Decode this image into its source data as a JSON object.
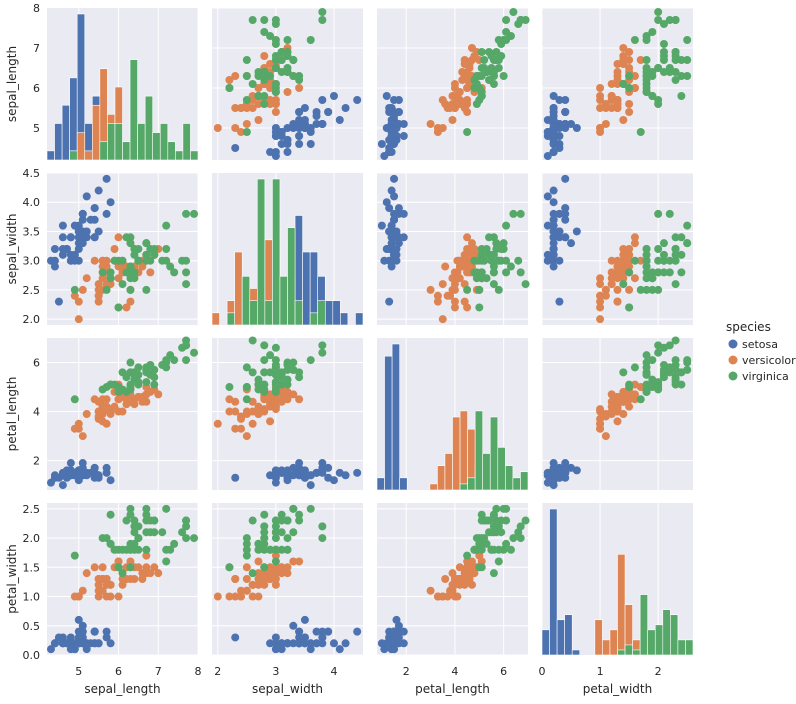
{
  "chart_data": {
    "type": "scatter",
    "title": "",
    "variables": [
      "sepal_length",
      "sepal_width",
      "petal_length",
      "petal_width"
    ],
    "diagonal_type": "bar",
    "legend": {
      "title": "species",
      "placement": "right",
      "entries": [
        {
          "name": "setosa",
          "color": "#4c72b0"
        },
        {
          "name": "versicolor",
          "color": "#dd8452"
        },
        {
          "name": "virginica",
          "color": "#55a868"
        }
      ]
    },
    "axes": {
      "sepal_length": {
        "label": "sepal_length",
        "range": [
          4.2,
          8.0
        ],
        "ticks": [
          5,
          6,
          7,
          8
        ]
      },
      "sepal_width": {
        "label": "sepal_width",
        "range": [
          1.9,
          4.5
        ],
        "ticks": [
          2.0,
          2.5,
          3.0,
          3.5,
          4.0,
          4.5
        ]
      },
      "petal_length": {
        "label": "petal_length",
        "range": [
          0.8,
          7.0
        ],
        "ticks": [
          2,
          4,
          6
        ]
      },
      "petal_width": {
        "label": "petal_width",
        "range": [
          0.0,
          2.6
        ],
        "ticks": [
          0.0,
          0.5,
          1.0,
          1.5,
          2.0,
          2.5
        ]
      }
    },
    "x_tick_labels": {
      "sepal_length": [
        "5",
        "6",
        "7",
        "8"
      ],
      "sepal_width": [
        "2",
        "3",
        "4"
      ],
      "petal_length": [
        "2",
        "4",
        "6"
      ],
      "petal_width": [
        "0",
        "1",
        "2"
      ]
    },
    "x_ticks": {
      "sepal_length": [
        5,
        6,
        7,
        8
      ],
      "sepal_width": [
        2,
        3,
        4
      ],
      "petal_length": [
        2,
        4,
        6
      ],
      "petal_width": [
        0,
        1,
        2
      ]
    },
    "y_tick_labels": {
      "sepal_length": [
        "5",
        "6",
        "7",
        "8"
      ],
      "sepal_width": [
        "2.0",
        "2.5",
        "3.0",
        "3.5",
        "4.0",
        "4.5"
      ],
      "petal_length": [
        "2",
        "4",
        "6"
      ],
      "petal_width": [
        "0.0",
        "0.5",
        "1.0",
        "1.5",
        "2.0",
        "2.5"
      ]
    },
    "series": [
      {
        "name": "setosa",
        "color": "#4c72b0",
        "points": [
          [
            5.1,
            3.5,
            1.4,
            0.2
          ],
          [
            4.9,
            3.0,
            1.4,
            0.2
          ],
          [
            4.7,
            3.2,
            1.3,
            0.2
          ],
          [
            4.6,
            3.1,
            1.5,
            0.2
          ],
          [
            5.0,
            3.6,
            1.4,
            0.2
          ],
          [
            5.4,
            3.9,
            1.7,
            0.4
          ],
          [
            4.6,
            3.4,
            1.4,
            0.3
          ],
          [
            5.0,
            3.4,
            1.5,
            0.2
          ],
          [
            4.4,
            2.9,
            1.4,
            0.2
          ],
          [
            4.9,
            3.1,
            1.5,
            0.1
          ],
          [
            5.4,
            3.7,
            1.5,
            0.2
          ],
          [
            4.8,
            3.4,
            1.6,
            0.2
          ],
          [
            4.8,
            3.0,
            1.4,
            0.1
          ],
          [
            4.3,
            3.0,
            1.1,
            0.1
          ],
          [
            5.8,
            4.0,
            1.2,
            0.2
          ],
          [
            5.7,
            4.4,
            1.5,
            0.4
          ],
          [
            5.4,
            3.9,
            1.3,
            0.4
          ],
          [
            5.1,
            3.5,
            1.4,
            0.3
          ],
          [
            5.7,
            3.8,
            1.7,
            0.3
          ],
          [
            5.1,
            3.8,
            1.5,
            0.3
          ],
          [
            5.4,
            3.4,
            1.7,
            0.2
          ],
          [
            5.1,
            3.7,
            1.5,
            0.4
          ],
          [
            4.6,
            3.6,
            1.0,
            0.2
          ],
          [
            5.1,
            3.3,
            1.7,
            0.5
          ],
          [
            4.8,
            3.4,
            1.9,
            0.2
          ],
          [
            5.0,
            3.0,
            1.6,
            0.2
          ],
          [
            5.0,
            3.4,
            1.6,
            0.4
          ],
          [
            5.2,
            3.5,
            1.5,
            0.2
          ],
          [
            5.2,
            3.4,
            1.4,
            0.2
          ],
          [
            4.7,
            3.2,
            1.6,
            0.2
          ],
          [
            4.8,
            3.1,
            1.6,
            0.2
          ],
          [
            5.4,
            3.4,
            1.5,
            0.4
          ],
          [
            5.2,
            4.1,
            1.5,
            0.1
          ],
          [
            5.5,
            4.2,
            1.4,
            0.2
          ],
          [
            4.9,
            3.1,
            1.5,
            0.2
          ],
          [
            5.0,
            3.2,
            1.2,
            0.2
          ],
          [
            5.5,
            3.5,
            1.3,
            0.2
          ],
          [
            4.9,
            3.6,
            1.4,
            0.1
          ],
          [
            4.4,
            3.0,
            1.3,
            0.2
          ],
          [
            5.1,
            3.4,
            1.5,
            0.2
          ],
          [
            5.0,
            3.5,
            1.3,
            0.3
          ],
          [
            4.5,
            2.3,
            1.3,
            0.3
          ],
          [
            4.4,
            3.2,
            1.3,
            0.2
          ],
          [
            5.0,
            3.5,
            1.6,
            0.6
          ],
          [
            5.1,
            3.8,
            1.9,
            0.4
          ],
          [
            4.8,
            3.0,
            1.4,
            0.3
          ],
          [
            5.1,
            3.8,
            1.6,
            0.2
          ],
          [
            4.6,
            3.2,
            1.4,
            0.2
          ],
          [
            5.3,
            3.7,
            1.5,
            0.2
          ],
          [
            5.0,
            3.3,
            1.4,
            0.2
          ]
        ]
      },
      {
        "name": "versicolor",
        "color": "#dd8452",
        "points": [
          [
            7.0,
            3.2,
            4.7,
            1.4
          ],
          [
            6.4,
            3.2,
            4.5,
            1.5
          ],
          [
            6.9,
            3.1,
            4.9,
            1.5
          ],
          [
            5.5,
            2.3,
            4.0,
            1.3
          ],
          [
            6.5,
            2.8,
            4.6,
            1.5
          ],
          [
            5.7,
            2.8,
            4.5,
            1.3
          ],
          [
            6.3,
            3.3,
            4.7,
            1.6
          ],
          [
            4.9,
            2.4,
            3.3,
            1.0
          ],
          [
            6.6,
            2.9,
            4.6,
            1.3
          ],
          [
            5.2,
            2.7,
            3.9,
            1.4
          ],
          [
            5.0,
            2.0,
            3.5,
            1.0
          ],
          [
            5.9,
            3.0,
            4.2,
            1.5
          ],
          [
            6.0,
            2.2,
            4.0,
            1.0
          ],
          [
            6.1,
            2.9,
            4.7,
            1.4
          ],
          [
            5.6,
            2.9,
            3.6,
            1.3
          ],
          [
            6.7,
            3.1,
            4.4,
            1.4
          ],
          [
            5.6,
            3.0,
            4.5,
            1.5
          ],
          [
            5.8,
            2.7,
            4.1,
            1.0
          ],
          [
            6.2,
            2.2,
            4.5,
            1.5
          ],
          [
            5.6,
            2.5,
            3.9,
            1.1
          ],
          [
            5.9,
            3.2,
            4.8,
            1.8
          ],
          [
            6.1,
            2.8,
            4.0,
            1.3
          ],
          [
            6.3,
            2.5,
            4.9,
            1.5
          ],
          [
            6.1,
            2.8,
            4.7,
            1.2
          ],
          [
            6.4,
            2.9,
            4.3,
            1.3
          ],
          [
            6.6,
            3.0,
            4.4,
            1.4
          ],
          [
            6.8,
            2.8,
            4.8,
            1.4
          ],
          [
            6.7,
            3.0,
            5.0,
            1.7
          ],
          [
            6.0,
            2.9,
            4.5,
            1.5
          ],
          [
            5.7,
            2.6,
            3.5,
            1.0
          ],
          [
            5.5,
            2.4,
            3.8,
            1.1
          ],
          [
            5.5,
            2.4,
            3.7,
            1.0
          ],
          [
            5.8,
            2.7,
            3.9,
            1.2
          ],
          [
            6.0,
            2.7,
            5.1,
            1.6
          ],
          [
            5.4,
            3.0,
            4.5,
            1.5
          ],
          [
            6.0,
            3.4,
            4.5,
            1.6
          ],
          [
            6.7,
            3.1,
            4.7,
            1.5
          ],
          [
            6.3,
            2.3,
            4.4,
            1.3
          ],
          [
            5.6,
            3.0,
            4.1,
            1.3
          ],
          [
            5.5,
            2.5,
            4.0,
            1.3
          ],
          [
            5.5,
            2.6,
            4.4,
            1.2
          ],
          [
            6.1,
            3.0,
            4.6,
            1.4
          ],
          [
            5.8,
            2.6,
            4.0,
            1.2
          ],
          [
            5.0,
            2.3,
            3.3,
            1.0
          ],
          [
            5.6,
            2.7,
            4.2,
            1.3
          ],
          [
            5.7,
            3.0,
            4.2,
            1.2
          ],
          [
            5.7,
            2.9,
            4.2,
            1.3
          ],
          [
            6.2,
            2.9,
            4.3,
            1.3
          ],
          [
            5.1,
            2.5,
            3.0,
            1.1
          ],
          [
            5.7,
            2.8,
            4.1,
            1.3
          ]
        ]
      },
      {
        "name": "virginica",
        "color": "#55a868",
        "points": [
          [
            6.3,
            3.3,
            6.0,
            2.5
          ],
          [
            5.8,
            2.7,
            5.1,
            1.9
          ],
          [
            7.1,
            3.0,
            5.9,
            2.1
          ],
          [
            6.3,
            2.9,
            5.6,
            1.8
          ],
          [
            6.5,
            3.0,
            5.8,
            2.2
          ],
          [
            7.6,
            3.0,
            6.6,
            2.1
          ],
          [
            4.9,
            2.5,
            4.5,
            1.7
          ],
          [
            7.3,
            2.9,
            6.3,
            1.8
          ],
          [
            6.7,
            2.5,
            5.8,
            1.8
          ],
          [
            7.2,
            3.6,
            6.1,
            2.5
          ],
          [
            6.5,
            3.2,
            5.1,
            2.0
          ],
          [
            6.4,
            2.7,
            5.3,
            1.9
          ],
          [
            6.8,
            3.0,
            5.5,
            2.1
          ],
          [
            5.7,
            2.5,
            5.0,
            2.0
          ],
          [
            5.8,
            2.8,
            5.1,
            2.4
          ],
          [
            6.4,
            3.2,
            5.3,
            2.3
          ],
          [
            6.5,
            3.0,
            5.5,
            1.8
          ],
          [
            7.7,
            3.8,
            6.7,
            2.2
          ],
          [
            7.7,
            2.6,
            6.9,
            2.3
          ],
          [
            6.0,
            2.2,
            5.0,
            1.5
          ],
          [
            6.9,
            3.2,
            5.7,
            2.3
          ],
          [
            5.6,
            2.8,
            4.9,
            2.0
          ],
          [
            7.7,
            2.8,
            6.7,
            2.0
          ],
          [
            6.3,
            2.7,
            4.9,
            1.8
          ],
          [
            6.7,
            3.3,
            5.7,
            2.1
          ],
          [
            7.2,
            3.2,
            6.0,
            1.8
          ],
          [
            6.2,
            2.8,
            4.8,
            1.8
          ],
          [
            6.1,
            3.0,
            4.9,
            1.8
          ],
          [
            6.4,
            2.8,
            5.6,
            2.1
          ],
          [
            7.2,
            3.0,
            5.8,
            1.6
          ],
          [
            7.4,
            2.8,
            6.1,
            1.9
          ],
          [
            7.9,
            3.8,
            6.4,
            2.0
          ],
          [
            6.4,
            2.8,
            5.6,
            2.2
          ],
          [
            6.3,
            2.8,
            5.1,
            1.5
          ],
          [
            6.1,
            2.6,
            5.6,
            1.4
          ],
          [
            7.7,
            3.0,
            6.1,
            2.3
          ],
          [
            6.3,
            3.4,
            5.6,
            2.4
          ],
          [
            6.4,
            3.1,
            5.5,
            1.8
          ],
          [
            6.0,
            3.0,
            4.8,
            1.8
          ],
          [
            6.9,
            3.1,
            5.4,
            2.1
          ],
          [
            6.7,
            3.1,
            5.6,
            2.4
          ],
          [
            6.9,
            3.1,
            5.1,
            2.3
          ],
          [
            5.8,
            2.7,
            5.1,
            1.9
          ],
          [
            6.8,
            3.2,
            5.9,
            2.3
          ],
          [
            6.7,
            3.3,
            5.7,
            2.5
          ],
          [
            6.7,
            3.0,
            5.2,
            2.3
          ],
          [
            6.3,
            2.5,
            5.0,
            1.9
          ],
          [
            6.5,
            3.0,
            5.2,
            2.0
          ],
          [
            6.2,
            3.4,
            5.4,
            2.3
          ],
          [
            5.9,
            3.0,
            5.1,
            1.8
          ]
        ]
      }
    ]
  }
}
